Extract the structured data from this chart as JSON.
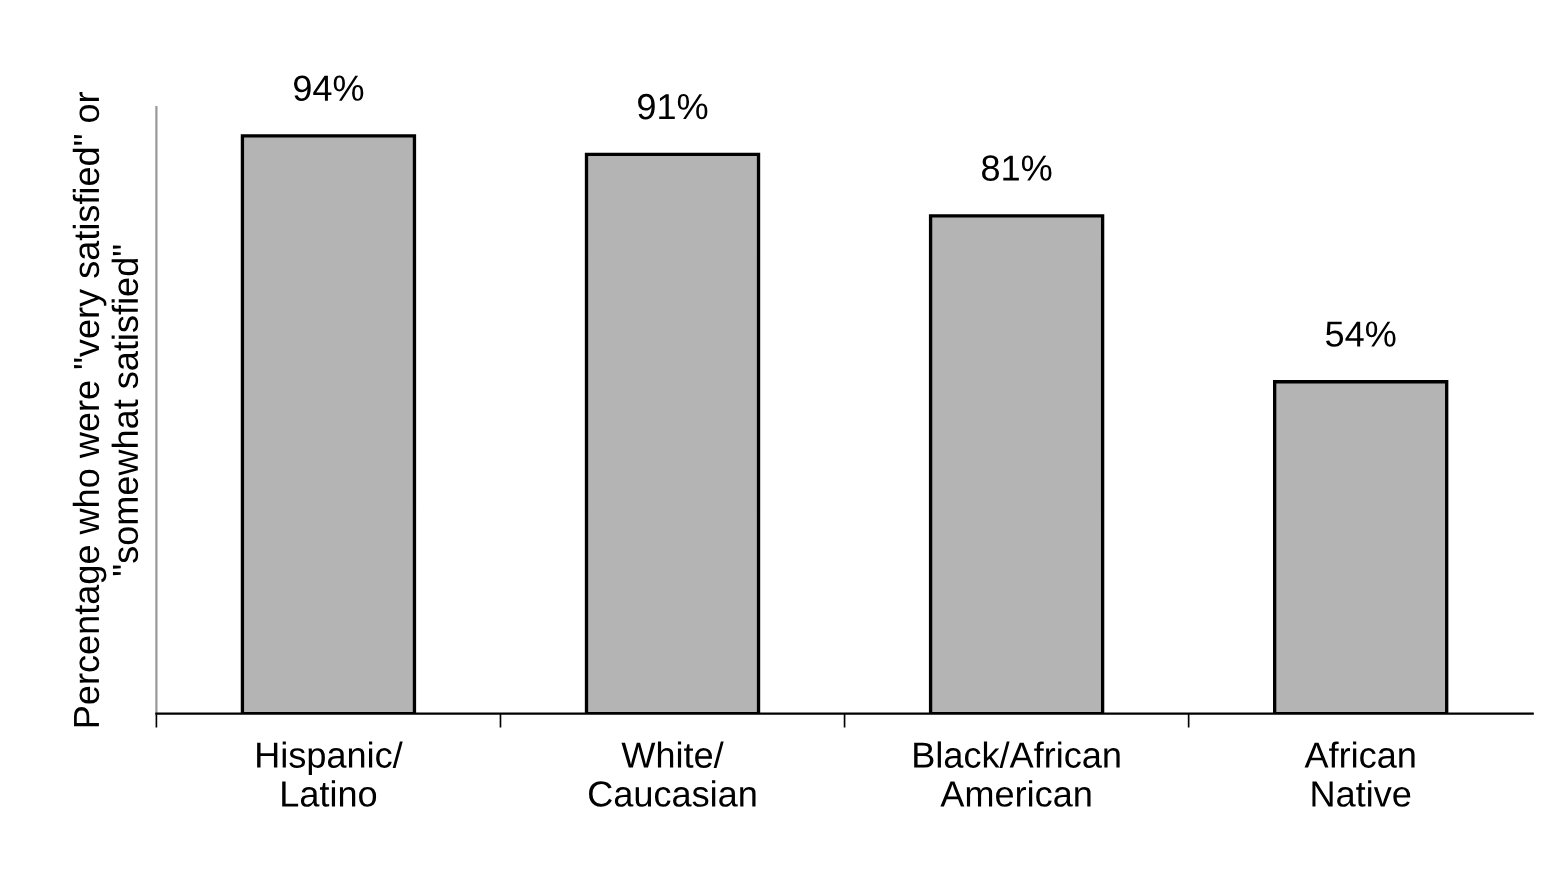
{
  "chart_data": {
    "type": "bar",
    "ylabel": "Percentage who were \"very satisfied\" or\n\"somewhat satisfied\"",
    "categories": [
      "Hispanic/\nLatino",
      "White/\nCaucasian",
      "Black/African\nAmerican",
      "African\nNative"
    ],
    "values": [
      94,
      91,
      81,
      54
    ],
    "color": "#b4b4b4",
    "data_labels": true,
    "value_labels": [
      "94%",
      "91%",
      "81%",
      "54%"
    ],
    "grid": false,
    "tick_labels": "x"
  }
}
